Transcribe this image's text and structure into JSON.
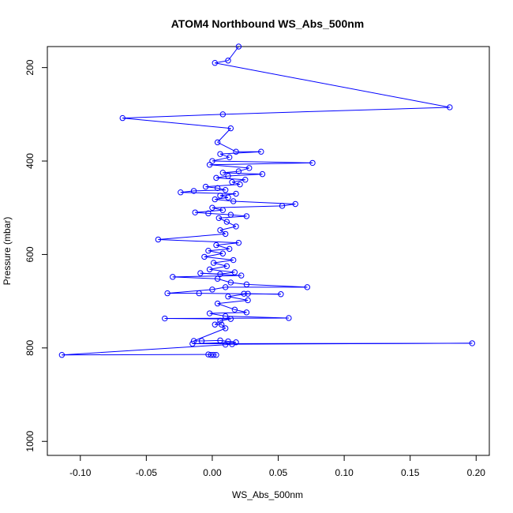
{
  "chart_data": {
    "type": "line",
    "title": "ATOM4 Northbound WS_Abs_500nm",
    "xlabel": "WS_Abs_500nm",
    "ylabel": "Pressure (mbar)",
    "xlim": [
      -0.125,
      0.21
    ],
    "ylim": [
      1030,
      155
    ],
    "y_reversed": true,
    "x_ticks": [
      -0.1,
      -0.05,
      0.0,
      0.05,
      0.1,
      0.15,
      0.2
    ],
    "x_tick_labels": [
      "-0.10",
      "-0.05",
      "0.00",
      "0.05",
      "0.10",
      "0.15",
      "0.20"
    ],
    "y_ticks": [
      200,
      400,
      600,
      800,
      1000
    ],
    "y_tick_labels": [
      "200",
      "400",
      "600",
      "800",
      "1000"
    ],
    "grid": false,
    "legend": "none",
    "series": [
      {
        "color": "#0000ff",
        "marker": "open-circle",
        "points": [
          [
            0.02,
            155
          ],
          [
            0.012,
            185
          ],
          [
            0.002,
            190
          ],
          [
            0.18,
            285
          ],
          [
            0.008,
            300
          ],
          [
            -0.068,
            308
          ],
          [
            0.014,
            330
          ],
          [
            0.004,
            360
          ],
          [
            0.018,
            380
          ],
          [
            0.037,
            380
          ],
          [
            0.006,
            385
          ],
          [
            0.013,
            392
          ],
          [
            0.0,
            400
          ],
          [
            0.076,
            404
          ],
          [
            -0.002,
            408
          ],
          [
            0.028,
            415
          ],
          [
            0.02,
            422
          ],
          [
            0.008,
            425
          ],
          [
            0.038,
            428
          ],
          [
            0.012,
            432
          ],
          [
            0.003,
            436
          ],
          [
            0.025,
            440
          ],
          [
            0.015,
            445
          ],
          [
            0.021,
            450
          ],
          [
            -0.005,
            455
          ],
          [
            0.004,
            458
          ],
          [
            0.01,
            462
          ],
          [
            -0.014,
            464
          ],
          [
            -0.024,
            467
          ],
          [
            0.018,
            470
          ],
          [
            0.006,
            474
          ],
          [
            0.012,
            478
          ],
          [
            0.002,
            482
          ],
          [
            0.016,
            486
          ],
          [
            0.063,
            492
          ],
          [
            0.053,
            496
          ],
          [
            0.0,
            500
          ],
          [
            0.008,
            505
          ],
          [
            -0.013,
            510
          ],
          [
            -0.003,
            512
          ],
          [
            0.014,
            515
          ],
          [
            0.026,
            518
          ],
          [
            0.005,
            522
          ],
          [
            0.011,
            530
          ],
          [
            0.018,
            540
          ],
          [
            0.006,
            548
          ],
          [
            0.01,
            556
          ],
          [
            -0.041,
            568
          ],
          [
            0.02,
            575
          ],
          [
            0.003,
            580
          ],
          [
            0.013,
            588
          ],
          [
            -0.003,
            592
          ],
          [
            0.008,
            598
          ],
          [
            -0.006,
            605
          ],
          [
            0.016,
            612
          ],
          [
            0.001,
            618
          ],
          [
            0.011,
            625
          ],
          [
            -0.002,
            632
          ],
          [
            0.017,
            638
          ],
          [
            0.006,
            642
          ],
          [
            -0.009,
            640
          ],
          [
            0.022,
            645
          ],
          [
            -0.03,
            648
          ],
          [
            0.004,
            652
          ],
          [
            0.014,
            660
          ],
          [
            0.026,
            664
          ],
          [
            0.072,
            670
          ],
          [
            0.01,
            670
          ],
          [
            0.0,
            675
          ],
          [
            -0.034,
            683
          ],
          [
            -0.01,
            683
          ],
          [
            0.052,
            685
          ],
          [
            0.024,
            684
          ],
          [
            0.027,
            684
          ],
          [
            0.012,
            690
          ],
          [
            0.027,
            698
          ],
          [
            0.004,
            705
          ],
          [
            0.017,
            718
          ],
          [
            0.026,
            724
          ],
          [
            -0.002,
            726
          ],
          [
            0.01,
            732
          ],
          [
            0.058,
            736
          ],
          [
            -0.036,
            737
          ],
          [
            0.014,
            738
          ],
          [
            0.006,
            742
          ],
          [
            0.002,
            750
          ],
          [
            0.007,
            750
          ],
          [
            0.01,
            758
          ],
          [
            -0.014,
            785
          ],
          [
            -0.008,
            785
          ],
          [
            0.006,
            784
          ],
          [
            0.012,
            786
          ],
          [
            0.018,
            788
          ],
          [
            -0.015,
            791
          ],
          [
            0.197,
            790
          ],
          [
            0.015,
            792
          ],
          [
            0.01,
            793
          ],
          [
            -0.114,
            815
          ],
          [
            -0.003,
            814
          ],
          [
            -0.001,
            815
          ],
          [
            0.001,
            815
          ],
          [
            0.003,
            815
          ]
        ]
      }
    ]
  }
}
